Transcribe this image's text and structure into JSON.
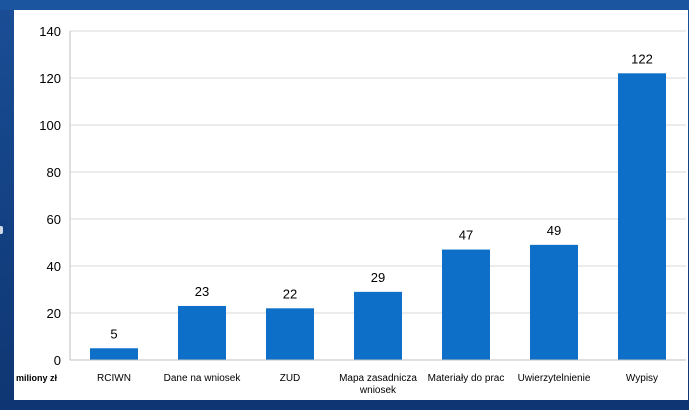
{
  "chart_data": {
    "type": "bar",
    "categories": [
      "RCIWN",
      "Dane na wniosek",
      "ZUD",
      "Mapa zasadnicza wniosek",
      "Materiały do prac",
      "Uwierzytelnienie",
      "Wypisy"
    ],
    "category_lines": [
      [
        "RCIWN"
      ],
      [
        "Dane na wniosek"
      ],
      [
        "ZUD"
      ],
      [
        "Mapa zasadnicza",
        "wniosek"
      ],
      [
        "Materiały do prac"
      ],
      [
        "Uwierzytelnienie"
      ],
      [
        "Wypisy"
      ]
    ],
    "values": [
      5,
      23,
      22,
      29,
      47,
      49,
      122
    ],
    "data_labels": [
      "5",
      "23",
      "22",
      "29",
      "47",
      "49",
      "122"
    ],
    "yticks": [
      0,
      20,
      40,
      60,
      80,
      100,
      120,
      140
    ],
    "ylim": [
      0,
      140
    ],
    "unit_label": "miliony zł",
    "grid": true,
    "bar_color": "#0d6fc8",
    "title": "",
    "xlabel": "",
    "ylabel": ""
  }
}
